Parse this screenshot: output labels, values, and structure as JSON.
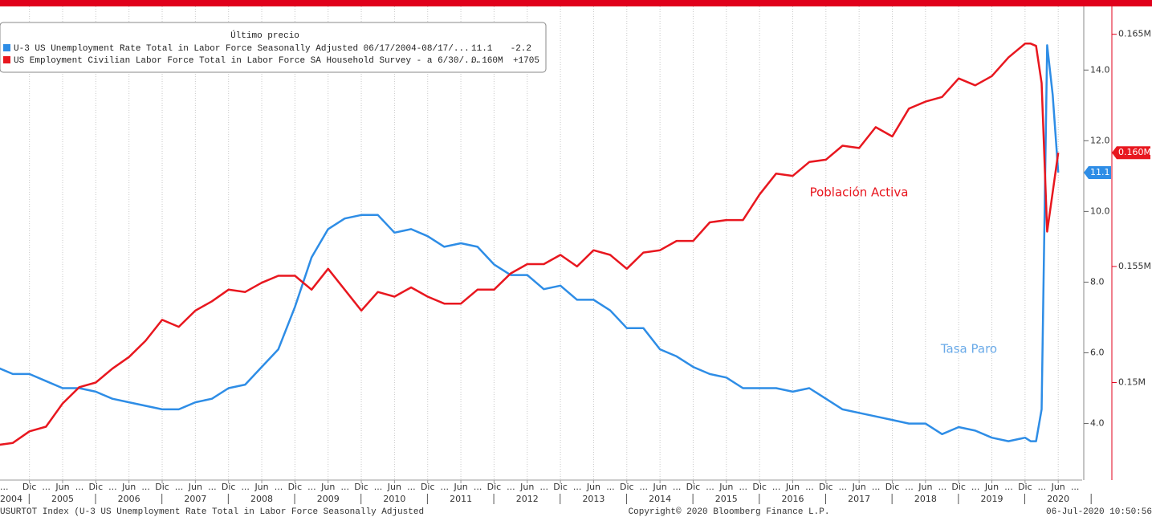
{
  "chart_data": {
    "type": "line",
    "legend_title": "Último precio",
    "x": [
      "2004-06",
      "2004-09",
      "2004-12",
      "2005-03",
      "2005-06",
      "2005-09",
      "2005-12",
      "2006-03",
      "2006-06",
      "2006-09",
      "2006-12",
      "2007-03",
      "2007-06",
      "2007-09",
      "2007-12",
      "2008-03",
      "2008-06",
      "2008-09",
      "2008-12",
      "2009-03",
      "2009-06",
      "2009-09",
      "2009-12",
      "2010-03",
      "2010-06",
      "2010-09",
      "2010-12",
      "2011-03",
      "2011-06",
      "2011-09",
      "2011-12",
      "2012-03",
      "2012-06",
      "2012-09",
      "2012-12",
      "2013-03",
      "2013-06",
      "2013-09",
      "2013-12",
      "2014-03",
      "2014-06",
      "2014-09",
      "2014-12",
      "2015-03",
      "2015-06",
      "2015-09",
      "2015-12",
      "2016-03",
      "2016-06",
      "2016-09",
      "2016-12",
      "2017-03",
      "2017-06",
      "2017-09",
      "2017-12",
      "2018-03",
      "2018-06",
      "2018-09",
      "2018-12",
      "2019-03",
      "2019-06",
      "2019-09",
      "2019-12",
      "2020-01",
      "2020-02",
      "2020-03",
      "2020-04",
      "2020-05",
      "2020-06"
    ],
    "series": [
      {
        "name": "U-3 US Unemployment Rate Total in Labor Force Seasonally Adjusted 06/17/2004-08/17/...",
        "color": "#2e8de6",
        "last_label": "11.1",
        "change": "-2.2",
        "values": [
          5.6,
          5.4,
          5.4,
          5.2,
          5.0,
          5.0,
          4.9,
          4.7,
          4.6,
          4.5,
          4.4,
          4.4,
          4.6,
          4.7,
          5.0,
          5.1,
          5.6,
          6.1,
          7.3,
          8.7,
          9.5,
          9.8,
          9.9,
          9.9,
          9.4,
          9.5,
          9.3,
          9.0,
          9.1,
          9.0,
          8.5,
          8.2,
          8.2,
          7.8,
          7.9,
          7.5,
          7.5,
          7.2,
          6.7,
          6.7,
          6.1,
          5.9,
          5.6,
          5.4,
          5.3,
          5.0,
          5.0,
          5.0,
          4.9,
          5.0,
          4.7,
          4.4,
          4.3,
          4.2,
          4.1,
          4.0,
          4.0,
          3.7,
          3.9,
          3.8,
          3.6,
          3.5,
          3.6,
          3.5,
          3.5,
          4.4,
          14.7,
          13.3,
          11.1
        ]
      },
      {
        "name": "US Employment Civilian Labor Force Total in Labor Force SA Household Survey -  a 6/30/...",
        "color": "#e8171f",
        "axis": "y2",
        "last_label": "0.160M",
        "change": "+1705",
        "values": [
          0.1473,
          0.1474,
          0.1479,
          0.1481,
          0.1491,
          0.1498,
          0.15,
          0.1506,
          0.1511,
          0.1518,
          0.1527,
          0.1524,
          0.1531,
          0.1535,
          0.154,
          0.1539,
          0.1543,
          0.1546,
          0.1546,
          0.154,
          0.1549,
          0.154,
          0.1531,
          0.1539,
          0.1537,
          0.1541,
          0.1537,
          0.1534,
          0.1534,
          0.154,
          0.154,
          0.1547,
          0.1551,
          0.1551,
          0.1555,
          0.155,
          0.1557,
          0.1555,
          0.1549,
          0.1556,
          0.1557,
          0.1561,
          0.1561,
          0.1569,
          0.157,
          0.157,
          0.1581,
          0.159,
          0.1589,
          0.1595,
          0.1596,
          0.1602,
          0.1601,
          0.161,
          0.1606,
          0.1618,
          0.1621,
          0.1623,
          0.1631,
          0.1628,
          0.1632,
          0.164,
          0.1646,
          0.1646,
          0.1645,
          0.1629,
          0.1565,
          0.1582,
          0.1599
        ]
      }
    ],
    "ylim": [
      2.4,
      15.8
    ],
    "yticks": [
      {
        "value": 4,
        "label": "4.0"
      },
      {
        "value": 6,
        "label": "6.0"
      },
      {
        "value": 8,
        "label": "8.0"
      },
      {
        "value": 10,
        "label": "10.0"
      },
      {
        "value": 12,
        "label": "12.0"
      },
      {
        "value": 14,
        "label": "14.0"
      }
    ],
    "y2lim": [
      0.1458,
      0.1662
    ],
    "y2ticks": [
      {
        "value": 0.15,
        "label": "0.15M"
      },
      {
        "value": 0.155,
        "label": "0.155M"
      },
      {
        "value": 0.165,
        "label": "0.165M"
      }
    ],
    "xticks": [
      {
        "value": "2004-12",
        "label": "Dic"
      },
      {
        "value": "2005-06",
        "label": "Jun"
      },
      {
        "value": "2005-12",
        "label": "Dic"
      },
      {
        "value": "2006-06",
        "label": "Jun"
      },
      {
        "value": "2006-12",
        "label": "Dic"
      },
      {
        "value": "2007-06",
        "label": "Jun"
      },
      {
        "value": "2007-12",
        "label": "Dic"
      },
      {
        "value": "2008-06",
        "label": "Jun"
      },
      {
        "value": "2008-12",
        "label": "Dic"
      },
      {
        "value": "2009-06",
        "label": "Jun"
      },
      {
        "value": "2009-12",
        "label": "Dic"
      },
      {
        "value": "2010-06",
        "label": "Jun"
      },
      {
        "value": "2010-12",
        "label": "Dic"
      },
      {
        "value": "2011-06",
        "label": "Jun"
      },
      {
        "value": "2011-12",
        "label": "Dic"
      },
      {
        "value": "2012-06",
        "label": "Jun"
      },
      {
        "value": "2012-12",
        "label": "Dic"
      },
      {
        "value": "2013-06",
        "label": "Jun"
      },
      {
        "value": "2013-12",
        "label": "Dic"
      },
      {
        "value": "2014-06",
        "label": "Jun"
      },
      {
        "value": "2014-12",
        "label": "Dic"
      },
      {
        "value": "2015-06",
        "label": "Jun"
      },
      {
        "value": "2015-12",
        "label": "Dic"
      },
      {
        "value": "2016-06",
        "label": "Jun"
      },
      {
        "value": "2016-12",
        "label": "Dic"
      },
      {
        "value": "2017-06",
        "label": "Jun"
      },
      {
        "value": "2017-12",
        "label": "Dic"
      },
      {
        "value": "2018-06",
        "label": "Jun"
      },
      {
        "value": "2018-12",
        "label": "Dic"
      },
      {
        "value": "2019-06",
        "label": "Jun"
      },
      {
        "value": "2019-12",
        "label": "Dic"
      },
      {
        "value": "2020-06",
        "label": "Jun"
      }
    ],
    "tick_gap_label": "...",
    "year_ticks": [
      2004,
      2005,
      2006,
      2007,
      2008,
      2009,
      2010,
      2011,
      2012,
      2013,
      2014,
      2015,
      2016,
      2017,
      2018,
      2019,
      2020
    ],
    "grid": true,
    "annotations": [
      {
        "text": "Población Activa",
        "series": 1
      },
      {
        "text": "Tasa Paro",
        "series": 0
      }
    ],
    "footer": {
      "left": "USURTOT Index (U-3 US Unemployment Rate Total in Labor Force Seasonally Adjusted",
      "center": "Copyright© 2020 Bloomberg Finance L.P.",
      "right": "06-Jul-2020 10:50:56"
    }
  }
}
